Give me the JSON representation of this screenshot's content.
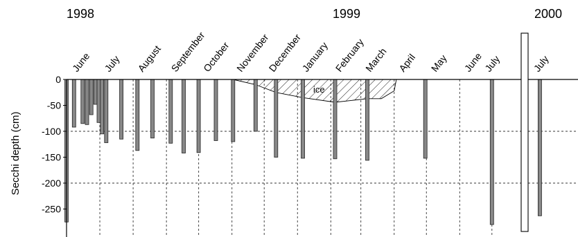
{
  "chart_data": {
    "type": "bar",
    "ylabel": "Secchi depth (cm)",
    "ylim": [
      -290,
      0
    ],
    "yticks": [
      0,
      -50,
      -100,
      -150,
      -200,
      -250
    ],
    "gridlines_y": [
      -100,
      -200
    ],
    "years": [
      "1998",
      "1999",
      "2000"
    ],
    "months": [
      "June",
      "July",
      "August",
      "September",
      "October",
      "November",
      "December",
      "January",
      "February",
      "March",
      "April",
      "May",
      "June",
      "July",
      "July"
    ],
    "annotation": "ice",
    "colors": {
      "bar": "#888888",
      "bar_edge": "#222222",
      "axis": "#000000",
      "grid": "#333333"
    },
    "series": [
      {
        "x": [
          "1998-05-31",
          "1998-06-07",
          "1998-06-15",
          "1998-06-19",
          "1998-06-23",
          "1998-06-27",
          "1998-06-30",
          "1998-07-03",
          "1998-07-07",
          "1998-07-21",
          "1998-08-05",
          "1998-08-19",
          "1998-09-05",
          "1998-09-17",
          "1998-10-01",
          "1998-10-17",
          "1998-11-02",
          "1998-11-23",
          "1998-12-12",
          "1999-01-06",
          "1999-02-05",
          "1999-03-07",
          "1999-04-30",
          "1999-07-01",
          "2000-07-08"
        ],
        "values": [
          -275,
          -92,
          -85,
          -87,
          -68,
          -48,
          -83,
          -105,
          -122,
          -115,
          -137,
          -113,
          -123,
          -142,
          -141,
          -118,
          -120,
          -100,
          -150,
          -152,
          -153,
          -156,
          -152,
          -280,
          -263
        ]
      }
    ],
    "ice_cover": {
      "x": [
        "1998-11-02",
        "1998-11-23",
        "1998-12-12",
        "1999-01-06",
        "1999-02-05",
        "1999-03-07",
        "1999-03-20",
        "1999-04-01",
        "1999-04-03"
      ],
      "values": [
        0,
        -10,
        -25,
        -35,
        -44,
        -37,
        -37,
        -22,
        0
      ]
    }
  }
}
